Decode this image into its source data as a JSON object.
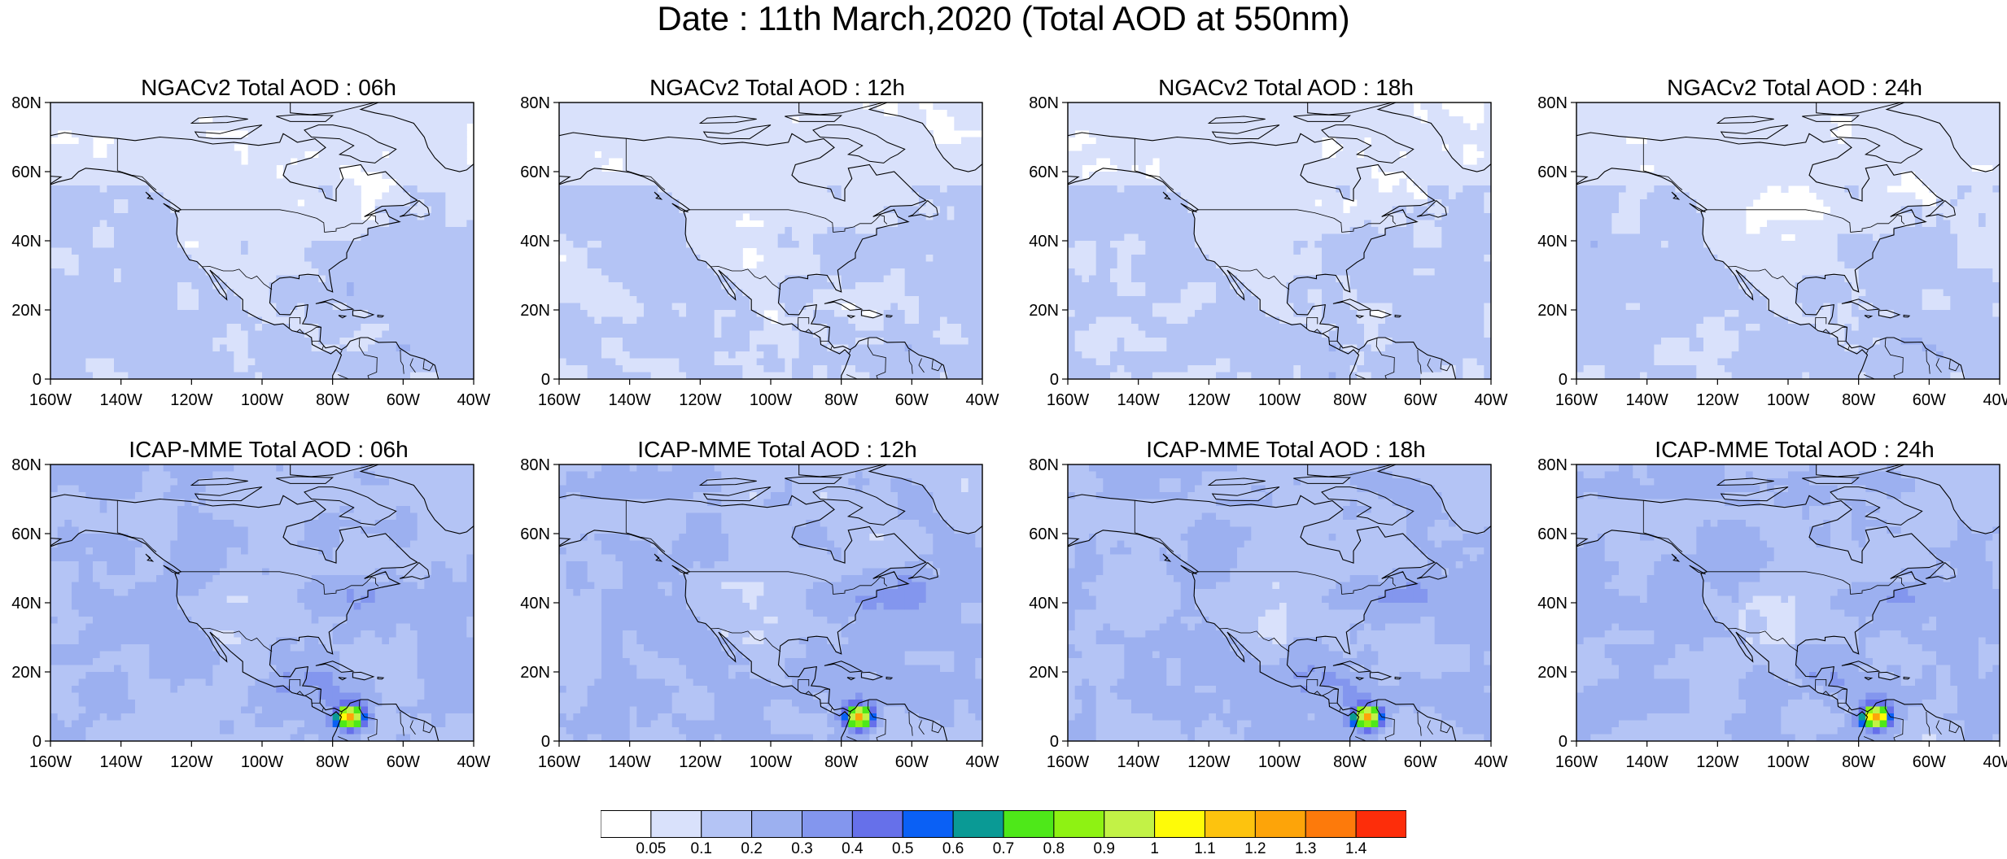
{
  "page_title": "Date : 11th March,2020 (Total AOD at 550nm)",
  "panels": [
    {
      "title": "NGACv2 Total AOD : 06h",
      "model": "NGACv2",
      "hour": 6
    },
    {
      "title": "NGACv2 Total AOD : 12h",
      "model": "NGACv2",
      "hour": 12
    },
    {
      "title": "NGACv2 Total AOD : 18h",
      "model": "NGACv2",
      "hour": 18
    },
    {
      "title": "NGACv2 Total AOD : 24h",
      "model": "NGACv2",
      "hour": 24
    },
    {
      "title": "ICAP-MME Total AOD : 06h",
      "model": "ICAP-MME",
      "hour": 6
    },
    {
      "title": "ICAP-MME Total AOD : 12h",
      "model": "ICAP-MME",
      "hour": 12
    },
    {
      "title": "ICAP-MME Total AOD : 18h",
      "model": "ICAP-MME",
      "hour": 18
    },
    {
      "title": "ICAP-MME Total AOD : 24h",
      "model": "ICAP-MME",
      "hour": 24
    }
  ],
  "axes": {
    "x_ticks": [
      "160W",
      "140W",
      "120W",
      "100W",
      "80W",
      "60W",
      "40W"
    ],
    "y_ticks": [
      "80N",
      "60N",
      "40N",
      "20N",
      "0"
    ],
    "lon_range": [
      -160,
      -40
    ],
    "lat_range": [
      0,
      80
    ]
  },
  "colorbar": {
    "labels": [
      "0.05",
      "0.1",
      "0.2",
      "0.3",
      "0.4",
      "0.5",
      "0.6",
      "0.7",
      "0.8",
      "0.9",
      "1",
      "1.1",
      "1.2",
      "1.3",
      "1.4"
    ],
    "colors": [
      "#ffffff",
      "#d9e1fb",
      "#b4c4f5",
      "#9cb0f0",
      "#8396ee",
      "#6670ea",
      "#0a60f5",
      "#0a9a95",
      "#4ee819",
      "#8ef213",
      "#c2f246",
      "#fefb08",
      "#fdc30e",
      "#fda409",
      "#fd7a0b",
      "#fd2d0a"
    ]
  }
}
